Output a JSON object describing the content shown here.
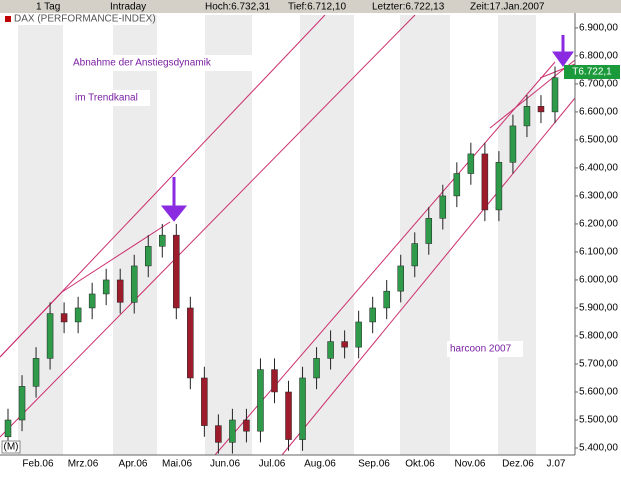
{
  "chart_data": {
    "type": "candlestick",
    "header": [
      "1 Tag",
      "Intraday",
      "Hoch:6.732,31",
      "Tief:6.712,10",
      "Letzter:6.722,13",
      "Zeit:17.Jan.2007"
    ],
    "title": "DAX (PERFORMANCE-INDEX)",
    "annotations": [
      "Abnahme der Anstiegsdynamik",
      "im Trendkanal",
      "harcoon 2007"
    ],
    "last_price_label": "T6.722,1",
    "mode_label": "(M)",
    "xlabels": [
      "Feb.06",
      "Mrz.06",
      "Apr.06",
      "Mai.06",
      "Jun.06",
      "Jul.06",
      "Aug.06",
      "Sep.06",
      "Okt.06",
      "Nov.06",
      "Dez.06",
      "J.07"
    ],
    "open": [
      5440,
      5500,
      5620,
      5720,
      5880,
      5850,
      5900,
      5950,
      6000,
      5920,
      6050,
      6120,
      6160,
      5900,
      5650,
      5480,
      5420,
      5500,
      5460,
      5680,
      5600,
      5430,
      5650,
      5720,
      5780,
      5760,
      5850,
      5900,
      5960,
      6050,
      6130,
      6220,
      6300,
      6380,
      6450,
      6250,
      6420,
      6550,
      6620,
      6600
    ],
    "high": [
      5540,
      5660,
      5760,
      5920,
      5920,
      5940,
      5990,
      6040,
      6040,
      6090,
      6160,
      6200,
      6200,
      5940,
      5690,
      5520,
      5540,
      5540,
      5720,
      5720,
      5640,
      5690,
      5760,
      5820,
      5820,
      5890,
      5940,
      6000,
      6090,
      6170,
      6260,
      6340,
      6420,
      6490,
      6490,
      6460,
      6590,
      6660,
      6660,
      6762
    ],
    "low": [
      5400,
      5460,
      5580,
      5680,
      5810,
      5810,
      5860,
      5910,
      5880,
      5880,
      6010,
      6080,
      5860,
      5610,
      5440,
      5380,
      5380,
      5420,
      5420,
      5560,
      5390,
      5390,
      5610,
      5680,
      5720,
      5720,
      5810,
      5860,
      5920,
      6010,
      6090,
      6180,
      6260,
      6340,
      6210,
      6210,
      6380,
      6510,
      6560,
      6560
    ],
    "close": [
      5500,
      5620,
      5720,
      5880,
      5850,
      5900,
      5950,
      6000,
      5920,
      6050,
      6120,
      6160,
      5900,
      5650,
      5480,
      5420,
      5500,
      5460,
      5680,
      5600,
      5430,
      5650,
      5720,
      5780,
      5760,
      5850,
      5900,
      5960,
      6050,
      6130,
      6220,
      6300,
      6380,
      6450,
      6250,
      6420,
      6550,
      6620,
      6600,
      6722
    ],
    "up_color": "#2e9a4a",
    "down_color": "#9c1c2c",
    "ylim": [
      5375,
      6946
    ],
    "yticks": [
      {
        "value": 5400,
        "label": "5.400,00"
      },
      {
        "value": 5500,
        "label": "5.500,00"
      },
      {
        "value": 5600,
        "label": "5.600,00"
      },
      {
        "value": 5700,
        "label": "5.700,00"
      },
      {
        "value": 5800,
        "label": "5.800,00"
      },
      {
        "value": 5900,
        "label": "5.900,00"
      },
      {
        "value": 6000,
        "label": "6.000,00"
      },
      {
        "value": 6100,
        "label": "6.100,00"
      },
      {
        "value": 6200,
        "label": "6.200,00"
      },
      {
        "value": 6300,
        "label": "6.300,00"
      },
      {
        "value": 6400,
        "label": "6.400,00"
      },
      {
        "value": 6500,
        "label": "6.500,00"
      },
      {
        "value": 6600,
        "label": "6.600,00"
      },
      {
        "value": 6700,
        "label": "6.700,00"
      },
      {
        "value": 6800,
        "label": "6.800,00"
      },
      {
        "value": 6900,
        "label": "6.900,00"
      }
    ]
  }
}
